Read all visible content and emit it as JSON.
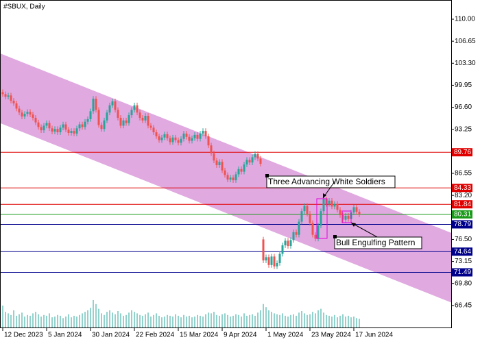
{
  "chart_data": {
    "type": "candlestick",
    "title": "#SBUX, Daily",
    "ylim": [
      63.1,
      112.92
    ],
    "xlim": [
      -1,
      163.5
    ],
    "yticks": [
      {
        "value": 110,
        "label": "110.00"
      },
      {
        "value": 106.65,
        "label": "106.65"
      },
      {
        "value": 103.3,
        "label": "103.30"
      },
      {
        "value": 99.95,
        "label": "99.95"
      },
      {
        "value": 96.6,
        "label": "96.60"
      },
      {
        "value": 93.25,
        "label": "93.25"
      },
      {
        "value": 86.55,
        "label": "86.55"
      },
      {
        "value": 83.2,
        "label": "83.20"
      },
      {
        "value": 76.5,
        "label": "76.50"
      },
      {
        "value": 73.15,
        "label": "73.15"
      },
      {
        "value": 69.8,
        "label": "69.80"
      },
      {
        "value": 66.45,
        "label": "66.45"
      }
    ],
    "xticks": [
      {
        "value": 0,
        "label": "12 Dec 2023"
      },
      {
        "value": 16,
        "label": "5 Jan 2024"
      },
      {
        "value": 32,
        "label": "30 Jan 2024"
      },
      {
        "value": 48,
        "label": "22 Feb 2024"
      },
      {
        "value": 64,
        "label": "15 Mar 2024"
      },
      {
        "value": 80,
        "label": "9 Apr 2024"
      },
      {
        "value": 96,
        "label": "1 May 2024"
      },
      {
        "value": 112,
        "label": "23 May 2024"
      },
      {
        "value": 128,
        "label": "17 Jun 2024"
      }
    ],
    "up_color": "#26a69a",
    "down_color": "#ef5350",
    "volume_color": "#26a69a",
    "channel": {
      "color": "#dda0dd",
      "x": [
        -1,
        163.5
      ],
      "upper": [
        104.8,
        77.5
      ],
      "lower": [
        94.2,
        66.9
      ]
    },
    "levels": [
      {
        "value": 89.76,
        "color": "#e00000"
      },
      {
        "value": 84.33,
        "color": "#e00000"
      },
      {
        "value": 81.84,
        "color": "#e00000"
      },
      {
        "value": 80.31,
        "color": "#1a9a1a"
      },
      {
        "value": 78.79,
        "color": "#00008b"
      },
      {
        "value": 74.64,
        "color": "#00008b"
      },
      {
        "value": 71.49,
        "color": "#00008b"
      }
    ],
    "annotations": [
      {
        "text": "Three Advancing White Soldiers"
      },
      {
        "text": "Bull Engulfing Pattern"
      }
    ],
    "ohlc": [
      [
        98.9,
        99.3,
        98.2,
        98.6
      ],
      [
        98.6,
        99.0,
        97.8,
        98.2
      ],
      [
        98.2,
        98.8,
        97.8,
        98.4
      ],
      [
        98.4,
        98.8,
        97.2,
        97.6
      ],
      [
        97.6,
        98.0,
        96.8,
        97.2
      ],
      [
        97.2,
        97.6,
        96.0,
        96.4
      ],
      [
        96.4,
        96.8,
        95.4,
        95.8
      ],
      [
        95.8,
        96.2,
        94.8,
        95.2
      ],
      [
        95.2,
        96.0,
        94.8,
        95.6
      ],
      [
        95.6,
        96.3,
        95.2,
        95.9
      ],
      [
        95.9,
        96.3,
        95.1,
        95.5
      ],
      [
        95.5,
        95.9,
        94.6,
        95.0
      ],
      [
        95.0,
        95.4,
        93.9,
        94.3
      ],
      [
        94.3,
        94.7,
        93.2,
        93.6
      ],
      [
        93.6,
        94.0,
        92.7,
        93.1
      ],
      [
        93.1,
        94.2,
        92.7,
        93.8
      ],
      [
        93.8,
        94.6,
        93.4,
        94.2
      ],
      [
        94.2,
        94.6,
        93.0,
        93.4
      ],
      [
        93.4,
        93.8,
        92.5,
        92.9
      ],
      [
        92.9,
        93.7,
        92.5,
        93.3
      ],
      [
        93.3,
        93.7,
        92.4,
        92.8
      ],
      [
        92.8,
        93.9,
        92.4,
        93.5
      ],
      [
        93.5,
        94.4,
        93.1,
        94.0
      ],
      [
        94.0,
        94.4,
        92.8,
        93.2
      ],
      [
        93.2,
        93.6,
        92.3,
        92.7
      ],
      [
        92.7,
        93.4,
        92.3,
        93.0
      ],
      [
        93.0,
        93.4,
        92.2,
        92.6
      ],
      [
        92.6,
        93.8,
        92.2,
        93.4
      ],
      [
        93.4,
        94.4,
        93.0,
        94.0
      ],
      [
        94.0,
        94.4,
        93.2,
        93.6
      ],
      [
        93.6,
        94.8,
        93.2,
        94.4
      ],
      [
        94.4,
        95.2,
        94.0,
        94.8
      ],
      [
        94.8,
        96.4,
        94.4,
        96.0
      ],
      [
        96.0,
        98.3,
        95.6,
        97.9
      ],
      [
        97.9,
        98.3,
        95.8,
        96.2
      ],
      [
        96.2,
        96.6,
        93.5,
        93.9
      ],
      [
        93.9,
        94.3,
        92.9,
        93.3
      ],
      [
        93.3,
        95.0,
        92.9,
        94.6
      ],
      [
        94.6,
        96.2,
        94.2,
        95.8
      ],
      [
        95.8,
        97.3,
        95.4,
        96.9
      ],
      [
        96.9,
        97.9,
        96.5,
        97.5
      ],
      [
        97.5,
        97.9,
        95.8,
        96.2
      ],
      [
        96.2,
        96.6,
        94.6,
        95.0
      ],
      [
        95.0,
        95.4,
        93.4,
        93.8
      ],
      [
        93.8,
        95.0,
        93.4,
        94.6
      ],
      [
        94.6,
        95.0,
        93.8,
        94.2
      ],
      [
        94.2,
        95.8,
        93.8,
        95.4
      ],
      [
        95.4,
        96.6,
        95.0,
        96.2
      ],
      [
        96.2,
        97.3,
        95.8,
        96.9
      ],
      [
        96.9,
        97.3,
        95.4,
        95.8
      ],
      [
        95.8,
        96.2,
        94.6,
        95.0
      ],
      [
        95.0,
        95.4,
        94.2,
        94.6
      ],
      [
        94.6,
        95.7,
        94.2,
        95.3
      ],
      [
        95.3,
        95.7,
        93.4,
        93.8
      ],
      [
        93.8,
        94.2,
        93.1,
        93.5
      ],
      [
        93.5,
        93.9,
        92.4,
        92.8
      ],
      [
        92.8,
        93.2,
        91.8,
        92.2
      ],
      [
        92.2,
        92.6,
        91.2,
        91.6
      ],
      [
        91.6,
        92.4,
        91.2,
        92.0
      ],
      [
        92.0,
        92.9,
        91.6,
        92.5
      ],
      [
        92.5,
        92.9,
        91.5,
        91.9
      ],
      [
        91.9,
        92.3,
        90.9,
        91.3
      ],
      [
        91.3,
        92.4,
        90.9,
        92.0
      ],
      [
        92.0,
        92.4,
        91.2,
        91.6
      ],
      [
        91.6,
        92.0,
        90.8,
        91.2
      ],
      [
        91.2,
        92.2,
        90.8,
        91.8
      ],
      [
        91.8,
        93.0,
        91.4,
        92.6
      ],
      [
        92.6,
        93.0,
        91.7,
        92.1
      ],
      [
        92.1,
        92.5,
        91.1,
        91.5
      ],
      [
        91.5,
        92.3,
        91.1,
        91.9
      ],
      [
        91.9,
        92.8,
        91.5,
        92.4
      ],
      [
        92.4,
        92.8,
        91.4,
        91.8
      ],
      [
        91.8,
        93.0,
        91.4,
        92.6
      ],
      [
        92.6,
        93.4,
        92.2,
        93.0
      ],
      [
        93.0,
        93.4,
        91.8,
        92.2
      ],
      [
        92.2,
        92.6,
        90.4,
        90.8
      ],
      [
        90.8,
        91.2,
        89.2,
        89.6
      ],
      [
        89.6,
        90.0,
        88.1,
        88.5
      ],
      [
        88.5,
        88.9,
        87.4,
        87.8
      ],
      [
        87.8,
        88.7,
        87.4,
        88.3
      ],
      [
        88.3,
        88.7,
        86.6,
        87.0
      ],
      [
        87.0,
        87.4,
        85.9,
        86.3
      ],
      [
        86.3,
        86.7,
        85.2,
        85.6
      ],
      [
        85.6,
        86.3,
        85.2,
        85.9
      ],
      [
        85.9,
        86.3,
        85.1,
        85.5
      ],
      [
        85.5,
        86.8,
        85.1,
        86.4
      ],
      [
        86.4,
        87.6,
        86.0,
        87.2
      ],
      [
        87.2,
        87.6,
        86.4,
        86.8
      ],
      [
        86.8,
        88.3,
        86.4,
        87.9
      ],
      [
        87.9,
        89.0,
        87.5,
        88.6
      ],
      [
        88.6,
        89.0,
        87.8,
        88.2
      ],
      [
        88.2,
        89.4,
        87.8,
        89.0
      ],
      [
        89.0,
        89.9,
        88.6,
        89.5
      ],
      [
        89.5,
        89.9,
        88.4,
        88.8
      ],
      [
        88.8,
        89.2,
        87.6,
        88.0
      ],
      [
        76.5,
        76.9,
        72.9,
        73.3
      ],
      [
        73.3,
        74.2,
        72.9,
        73.8
      ],
      [
        73.8,
        74.2,
        72.2,
        72.6
      ],
      [
        72.6,
        74.3,
        72.2,
        73.9
      ],
      [
        73.9,
        74.3,
        72.0,
        72.4
      ],
      [
        72.4,
        73.3,
        72.0,
        72.9
      ],
      [
        72.9,
        74.7,
        72.5,
        74.3
      ],
      [
        74.3,
        76.0,
        73.9,
        75.6
      ],
      [
        75.6,
        76.7,
        75.2,
        76.3
      ],
      [
        76.3,
        76.7,
        75.1,
        75.5
      ],
      [
        75.5,
        76.8,
        75.1,
        76.4
      ],
      [
        76.4,
        78.0,
        76.0,
        77.6
      ],
      [
        77.6,
        78.0,
        76.8,
        77.2
      ],
      [
        77.2,
        79.6,
        76.8,
        79.2
      ],
      [
        79.2,
        81.2,
        78.8,
        80.8
      ],
      [
        80.8,
        82.0,
        80.4,
        81.6
      ],
      [
        81.6,
        82.0,
        80.0,
        80.4
      ],
      [
        80.4,
        80.8,
        78.6,
        79.0
      ],
      [
        79.0,
        79.4,
        76.8,
        77.2
      ],
      [
        77.2,
        77.6,
        76.2,
        76.6
      ],
      [
        76.6,
        79.0,
        76.2,
        78.6
      ],
      [
        78.6,
        81.2,
        78.2,
        80.8
      ],
      [
        80.8,
        83.0,
        80.4,
        82.6
      ],
      [
        82.6,
        83.0,
        81.5,
        81.9
      ],
      [
        81.9,
        82.8,
        81.5,
        82.4
      ],
      [
        82.4,
        82.8,
        81.1,
        81.5
      ],
      [
        81.5,
        82.3,
        81.1,
        81.9
      ],
      [
        81.9,
        82.3,
        80.6,
        81.0
      ],
      [
        81.0,
        81.4,
        79.8,
        80.2
      ],
      [
        80.2,
        80.6,
        79.1,
        79.5
      ],
      [
        79.5,
        80.5,
        79.1,
        80.1
      ],
      [
        80.1,
        80.5,
        79.2,
        79.6
      ],
      [
        79.6,
        81.0,
        79.2,
        80.6
      ],
      [
        80.6,
        81.8,
        80.2,
        81.4
      ],
      [
        81.4,
        81.8,
        80.3,
        80.7
      ],
      [
        80.7,
        81.1,
        79.9,
        80.31
      ]
    ],
    "volumes": [
      28,
      20,
      18,
      16,
      22,
      15,
      17,
      19,
      14,
      16,
      15,
      18,
      20,
      17,
      14,
      16,
      15,
      18,
      13,
      14,
      16,
      15,
      12,
      14,
      17,
      13,
      15,
      14,
      16,
      18,
      20,
      22,
      25,
      35,
      30,
      24,
      18,
      16,
      20,
      22,
      19,
      17,
      21,
      18,
      15,
      16,
      19,
      22,
      20,
      18,
      16,
      15,
      17,
      19,
      14,
      16,
      18,
      15,
      13,
      14,
      16,
      15,
      14,
      17,
      15,
      13,
      16,
      14,
      15,
      13,
      14,
      16,
      15,
      14,
      17,
      19,
      18,
      20,
      16,
      15,
      17,
      18,
      16,
      14,
      15,
      17,
      16,
      14,
      18,
      15,
      16,
      17,
      15,
      19,
      22,
      30,
      26,
      22,
      20,
      18,
      17,
      16,
      18,
      15,
      14,
      16,
      17,
      15,
      19,
      21,
      18,
      16,
      17,
      20,
      18,
      22,
      24,
      19,
      16,
      15,
      14,
      16,
      13,
      15,
      17,
      14,
      15,
      13,
      14,
      12,
      11
    ]
  }
}
